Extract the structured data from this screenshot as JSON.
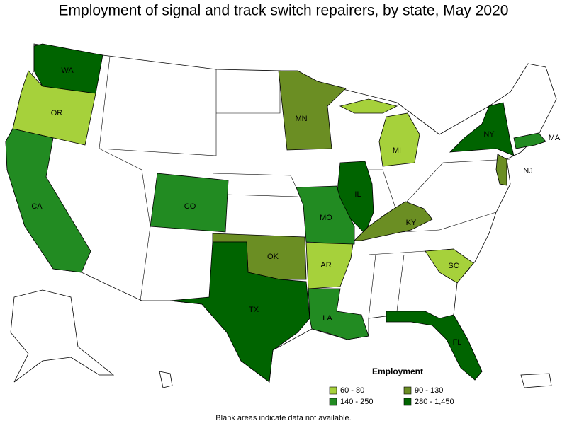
{
  "title": "Employment of signal and track switch repairers, by state, May 2020",
  "legend": {
    "title": "Employment",
    "items": [
      {
        "label": "60 - 80",
        "color": "#a6d13b"
      },
      {
        "label": "90 - 130",
        "color": "#6b8e23"
      },
      {
        "label": "140 - 250",
        "color": "#228b22"
      },
      {
        "label": "280 - 1,450",
        "color": "#006400"
      }
    ]
  },
  "states": [
    {
      "label": "WA",
      "color": "#006400"
    },
    {
      "label": "OR",
      "color": "#a6d13b"
    },
    {
      "label": "CA",
      "color": "#228b22"
    },
    {
      "label": "CO",
      "color": "#228b22"
    },
    {
      "label": "MN",
      "color": "#6b8e23"
    },
    {
      "label": "MI",
      "color": "#a6d13b"
    },
    {
      "label": "NY",
      "color": "#006400"
    },
    {
      "label": "MA",
      "color": "#228b22"
    },
    {
      "label": "NJ",
      "color": "#6b8e23"
    },
    {
      "label": "IL",
      "color": "#006400"
    },
    {
      "label": "MO",
      "color": "#228b22"
    },
    {
      "label": "KY",
      "color": "#6b8e23"
    },
    {
      "label": "OK",
      "color": "#6b8e23"
    },
    {
      "label": "AR",
      "color": "#a6d13b"
    },
    {
      "label": "TX",
      "color": "#006400"
    },
    {
      "label": "LA",
      "color": "#228b22"
    },
    {
      "label": "SC",
      "color": "#a6d13b"
    },
    {
      "label": "FL",
      "color": "#006400"
    }
  ],
  "footnote": "Blank areas indicate data not available."
}
